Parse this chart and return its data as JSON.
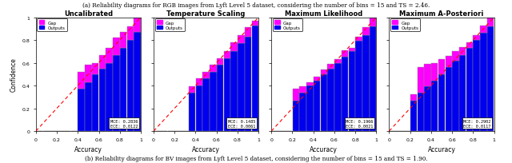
{
  "suptitle_a": "(a) Reliability diagrams for RGB images from Lyft Level 5 dataset, considering the number of bins = 15 and TS = 2.46.",
  "suptitle_b": "(b) Reliability diagrams for BV images from Lyft Level 5 dataset, considering the number of bins = 15 and TS = 1.90.",
  "subplots": [
    {
      "title": "Uncalibrated",
      "mce": "0.2836",
      "ece": "0.0122",
      "bin_centers": [
        0.0333,
        0.1,
        0.1667,
        0.2333,
        0.3,
        0.3667,
        0.4333,
        0.5,
        0.5667,
        0.6333,
        0.7,
        0.7667,
        0.8333,
        0.9,
        0.9667
      ],
      "outputs": [
        0.0,
        0.0,
        0.0,
        0.0,
        0.0,
        0.0,
        0.37,
        0.43,
        0.5,
        0.55,
        0.6,
        0.67,
        0.73,
        0.8,
        0.87
      ],
      "gaps": [
        0.0,
        0.0,
        0.0,
        0.0,
        0.0,
        0.0,
        0.15,
        0.15,
        0.1,
        0.12,
        0.13,
        0.15,
        0.14,
        0.12,
        0.13
      ]
    },
    {
      "title": "Temperature Scaling",
      "mce": "0.1485",
      "ece": "0.0061",
      "bin_centers": [
        0.0333,
        0.1,
        0.1667,
        0.2333,
        0.3,
        0.3667,
        0.4333,
        0.5,
        0.5667,
        0.6333,
        0.7,
        0.7667,
        0.8333,
        0.9,
        0.9667
      ],
      "outputs": [
        0.0,
        0.0,
        0.0,
        0.0,
        0.0,
        0.34,
        0.4,
        0.46,
        0.52,
        0.58,
        0.64,
        0.7,
        0.77,
        0.83,
        0.93
      ],
      "gaps": [
        0.0,
        0.0,
        0.0,
        0.0,
        0.0,
        0.05,
        0.06,
        0.06,
        0.06,
        0.06,
        0.06,
        0.08,
        0.07,
        0.08,
        0.04
      ]
    },
    {
      "title": "Maximum Likelihood",
      "mce": "0.1966",
      "ece": "0.0021",
      "bin_centers": [
        0.0333,
        0.1,
        0.1667,
        0.2333,
        0.3,
        0.3667,
        0.4333,
        0.5,
        0.5667,
        0.6333,
        0.7,
        0.7667,
        0.8333,
        0.9,
        0.9667
      ],
      "outputs": [
        0.0,
        0.0,
        0.0,
        0.27,
        0.34,
        0.4,
        0.44,
        0.5,
        0.55,
        0.6,
        0.65,
        0.7,
        0.79,
        0.84,
        0.92
      ],
      "gaps": [
        0.0,
        0.0,
        0.0,
        0.1,
        0.05,
        0.03,
        0.04,
        0.04,
        0.04,
        0.03,
        0.06,
        0.03,
        0.04,
        0.07,
        0.08
      ]
    },
    {
      "title": "Maximum A-Posteriori",
      "mce": "0.2902",
      "ece": "0.0117",
      "bin_centers": [
        0.0333,
        0.1,
        0.1667,
        0.2333,
        0.3,
        0.3667,
        0.4333,
        0.5,
        0.5667,
        0.6333,
        0.7,
        0.7667,
        0.8333,
        0.9,
        0.9667
      ],
      "outputs": [
        0.0,
        0.0,
        0.0,
        0.27,
        0.34,
        0.39,
        0.44,
        0.5,
        0.56,
        0.62,
        0.67,
        0.73,
        0.8,
        0.86,
        0.92
      ],
      "gaps": [
        0.0,
        0.0,
        0.0,
        0.05,
        0.22,
        0.2,
        0.16,
        0.13,
        0.1,
        0.08,
        0.07,
        0.05,
        0.04,
        0.07,
        0.08
      ]
    }
  ],
  "bar_color_outputs": "#0000EE",
  "bar_color_gap": "#FF00FF",
  "bar_color_edge": "#888888",
  "diag_color": "#FF0000",
  "xlabel": "Accuracy",
  "ylabel": "Confidence",
  "xlim": [
    0,
    1
  ],
  "ylim": [
    0,
    1
  ],
  "xticks": [
    0,
    0.2,
    0.4,
    0.6,
    0.8,
    1
  ],
  "yticks": [
    0,
    0.2,
    0.4,
    0.6,
    0.8,
    1
  ],
  "xtick_labels": [
    "0",
    "0.2",
    "0.4",
    "0.6",
    "0.8",
    "1"
  ],
  "ytick_labels": [
    "0",
    "0.2",
    "0.4",
    "0.6",
    "0.8",
    "1"
  ]
}
